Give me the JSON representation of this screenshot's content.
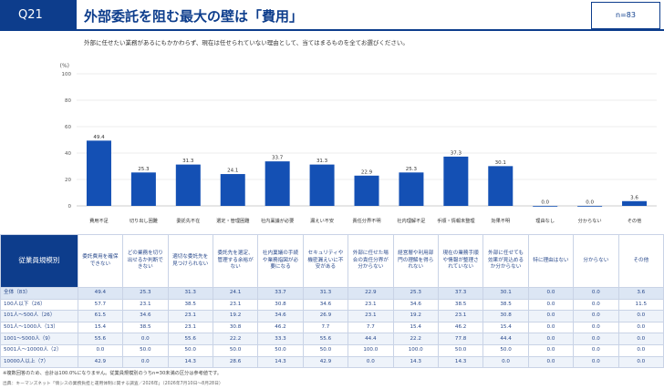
{
  "header": {
    "q_label": "Q21",
    "title": "外部委託を阻む最大の壁は「費用」",
    "n_label": "n=83"
  },
  "question": "外部に任せたい業務があるにもかかわらず、現在は任せられていない理由として、当てはまるものを全てお選びください。",
  "colors": {
    "bar": "#1450b4",
    "brand": "#0d3d8c"
  },
  "chart_data": {
    "type": "bar",
    "unit_label": "(%)",
    "ylim": [
      0,
      100
    ],
    "yticks": [
      0,
      20,
      40,
      60,
      80,
      100
    ],
    "categories": [
      "費用不足",
      "切り出し困難",
      "委託先不在",
      "選定・管理困難",
      "社内稟議が必要",
      "漏えい不安",
      "責任分界不明",
      "社内理解不足",
      "手順・情報未整理",
      "効果不明",
      "理由なし",
      "分からない",
      "その他"
    ],
    "values": [
      49.4,
      25.3,
      31.3,
      24.1,
      33.7,
      31.3,
      22.9,
      25.3,
      37.3,
      30.1,
      0.0,
      0.0,
      3.6
    ]
  },
  "table": {
    "corner_label": "従業員規模別",
    "column_headers": [
      "委託費用を確保できない",
      "どの業務を切り出せるか判断できない",
      "適切な委託先を見つけられない",
      "委託先を選定、管理する余裕がない",
      "社内稟議の手続や業務指図が必要になる",
      "セキュリティや機密漏えいに不安がある",
      "外部に任せた場合の責任分界が分からない",
      "経営層や利用部門の理解を得られない",
      "現在の業務手順や情報が整理されていない",
      "外部に任せても効果が見込めるか分からない",
      "特に理由はない",
      "分からない",
      "その他"
    ],
    "rows": [
      {
        "label": "全体（83）",
        "values": [
          "49.4",
          "25.3",
          "31.3",
          "24.1",
          "33.7",
          "31.3",
          "22.9",
          "25.3",
          "37.3",
          "30.1",
          "0.0",
          "0.0",
          "3.6"
        ]
      },
      {
        "label": "100人以下（26）",
        "values": [
          "57.7",
          "23.1",
          "38.5",
          "23.1",
          "30.8",
          "34.6",
          "23.1",
          "34.6",
          "38.5",
          "38.5",
          "0.0",
          "0.0",
          "11.5"
        ]
      },
      {
        "label": "101人～500人（26）",
        "values": [
          "61.5",
          "34.6",
          "23.1",
          "19.2",
          "34.6",
          "26.9",
          "23.1",
          "19.2",
          "23.1",
          "30.8",
          "0.0",
          "0.0",
          "0.0"
        ]
      },
      {
        "label": "501人～1000人（13）",
        "values": [
          "15.4",
          "38.5",
          "23.1",
          "30.8",
          "46.2",
          "7.7",
          "7.7",
          "15.4",
          "46.2",
          "15.4",
          "0.0",
          "0.0",
          "0.0"
        ]
      },
      {
        "label": "1001～5000人（9）",
        "values": [
          "55.6",
          "0.0",
          "55.6",
          "22.2",
          "33.3",
          "55.6",
          "44.4",
          "22.2",
          "77.8",
          "44.4",
          "0.0",
          "0.0",
          "0.0"
        ]
      },
      {
        "label": "5001人～10000人（2）",
        "values": [
          "0.0",
          "50.0",
          "50.0",
          "50.0",
          "50.0",
          "50.0",
          "100.0",
          "100.0",
          "50.0",
          "50.0",
          "0.0",
          "0.0",
          "0.0"
        ]
      },
      {
        "label": "10000人以上（7）",
        "values": [
          "42.9",
          "0.0",
          "14.3",
          "28.6",
          "14.3",
          "42.9",
          "0.0",
          "14.3",
          "14.3",
          "0.0",
          "0.0",
          "0.0",
          "0.0"
        ]
      }
    ]
  },
  "footnotes": {
    "line1": "※複数回答のため、合計は100.0%になりません。従業員規模別のうちn=30未満の区分は参考値です。",
    "line2": "出典：キーマンズネット「情シスの業務負担と運用体制に関する調査／2026年」（2026年7月10日～8月28日）"
  }
}
